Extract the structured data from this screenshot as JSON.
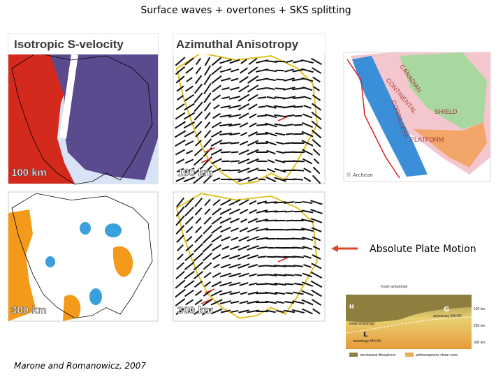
{
  "header": {
    "title": "Surface waves + overtones + SKS splitting"
  },
  "panels": [
    {
      "label": "Isotropic S-velocity",
      "depth": "100 km"
    },
    {
      "label": "Azimuthal Anisotropy",
      "depth": "100 km"
    },
    {
      "depth": "300 km"
    },
    {
      "depth": "300 km"
    }
  ],
  "geology_map": {
    "labels": [
      "CANADIAN",
      "CONTINENTAL",
      "CORDILLERA",
      "SHIELD",
      "PLATFORM",
      "Archean"
    ]
  },
  "legend": {
    "arrow_label": "Absolute Plate Motion"
  },
  "cross_section": {
    "labels": [
      "frozen anisotropy",
      "H",
      "G",
      "weak anisotropy",
      "L",
      "anisotropy SH>SV",
      "anisotropy SH>SV",
      "100 km",
      "200 km",
      "300 km",
      "mechanical lithosphere",
      "asthenospheric shear zone"
    ]
  },
  "citation": "Marone and Romanowicz, 2007"
}
